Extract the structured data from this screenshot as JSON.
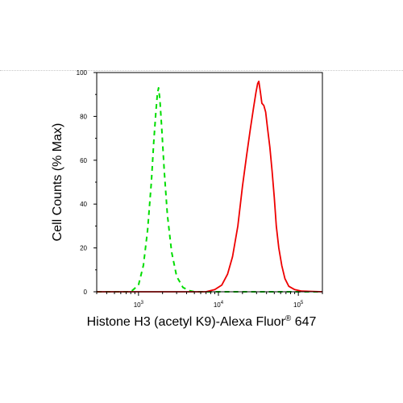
{
  "chart_data": {
    "type": "line",
    "xscale": "log",
    "xlabel_main": "Histone H3 (acetyl K9)-Alexa Fluor",
    "xlabel_sup": "®",
    "xlabel_tail": " 647",
    "ylabel": "Cell Counts (% Max)",
    "xlim": [
      300,
      200000
    ],
    "ylim": [
      0,
      100
    ],
    "x_tick_labels": [
      {
        "base": "10",
        "exp": "3",
        "value": 1000
      },
      {
        "base": "10",
        "exp": "4",
        "value": 10000
      },
      {
        "base": "10",
        "exp": "5",
        "value": 100000
      }
    ],
    "y_ticks": [
      0,
      20,
      40,
      60,
      80,
      100
    ],
    "grid": false,
    "legend": "none",
    "series": [
      {
        "color": "#00dd00",
        "style": "dashed",
        "x": [
          300,
          800,
          1000,
          1150,
          1300,
          1450,
          1550,
          1650,
          1720,
          1780,
          1850,
          1950,
          2100,
          2300,
          2600,
          3000,
          3600,
          4300,
          5000,
          200000
        ],
        "y": [
          0,
          0,
          3,
          12,
          28,
          50,
          68,
          82,
          90,
          93,
          88,
          75,
          55,
          35,
          18,
          7,
          2,
          0.5,
          0,
          0
        ]
      },
      {
        "color": "#ee0000",
        "style": "solid",
        "x": [
          300,
          7000,
          9000,
          11000,
          13000,
          15000,
          17500,
          20000,
          22500,
          25000,
          27500,
          29500,
          31000,
          32000,
          33500,
          35000,
          37000,
          39000,
          41000,
          44000,
          47000,
          50000,
          53000,
          57000,
          62000,
          68000,
          76000,
          90000,
          110000,
          200000
        ],
        "y": [
          0,
          0,
          1,
          3,
          8,
          16,
          30,
          48,
          62,
          74,
          84,
          91,
          95,
          96,
          91,
          86,
          85,
          82,
          75,
          66,
          55,
          43,
          30,
          20,
          12,
          6,
          2.5,
          1,
          0.3,
          0
        ]
      }
    ]
  }
}
